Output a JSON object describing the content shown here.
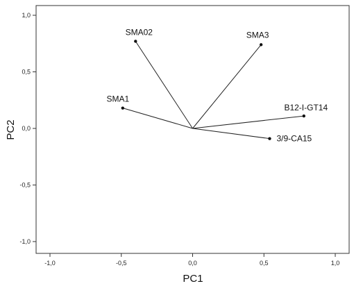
{
  "chart_data": {
    "type": "scatter",
    "subtype": "loading-plot",
    "xlabel": "PC1",
    "ylabel": "PC2",
    "xlim": [
      -1.0,
      1.0
    ],
    "ylim": [
      -1.0,
      1.0
    ],
    "x_ticks": [
      "-1,0",
      "-0,5",
      "0,0",
      "0,5",
      "1,0"
    ],
    "y_ticks": [
      "1,0",
      "0,5",
      "0,0",
      "-0,5",
      "-1,0"
    ],
    "x_tick_values": [
      -1.0,
      -0.5,
      0.0,
      0.5,
      1.0
    ],
    "y_tick_values": [
      1.0,
      0.5,
      0.0,
      -0.5,
      -1.0
    ],
    "grid": false,
    "origin": [
      0.0,
      0.0
    ],
    "points": [
      {
        "label": "SMA02",
        "x": -0.4,
        "y": 0.77
      },
      {
        "label": "SMA3",
        "x": 0.48,
        "y": 0.74
      },
      {
        "label": "SMA1",
        "x": -0.49,
        "y": 0.18
      },
      {
        "label": "B12-I-GT14",
        "x": 0.78,
        "y": 0.11
      },
      {
        "label": "3/9-CA15",
        "x": 0.54,
        "y": -0.09
      }
    ]
  }
}
